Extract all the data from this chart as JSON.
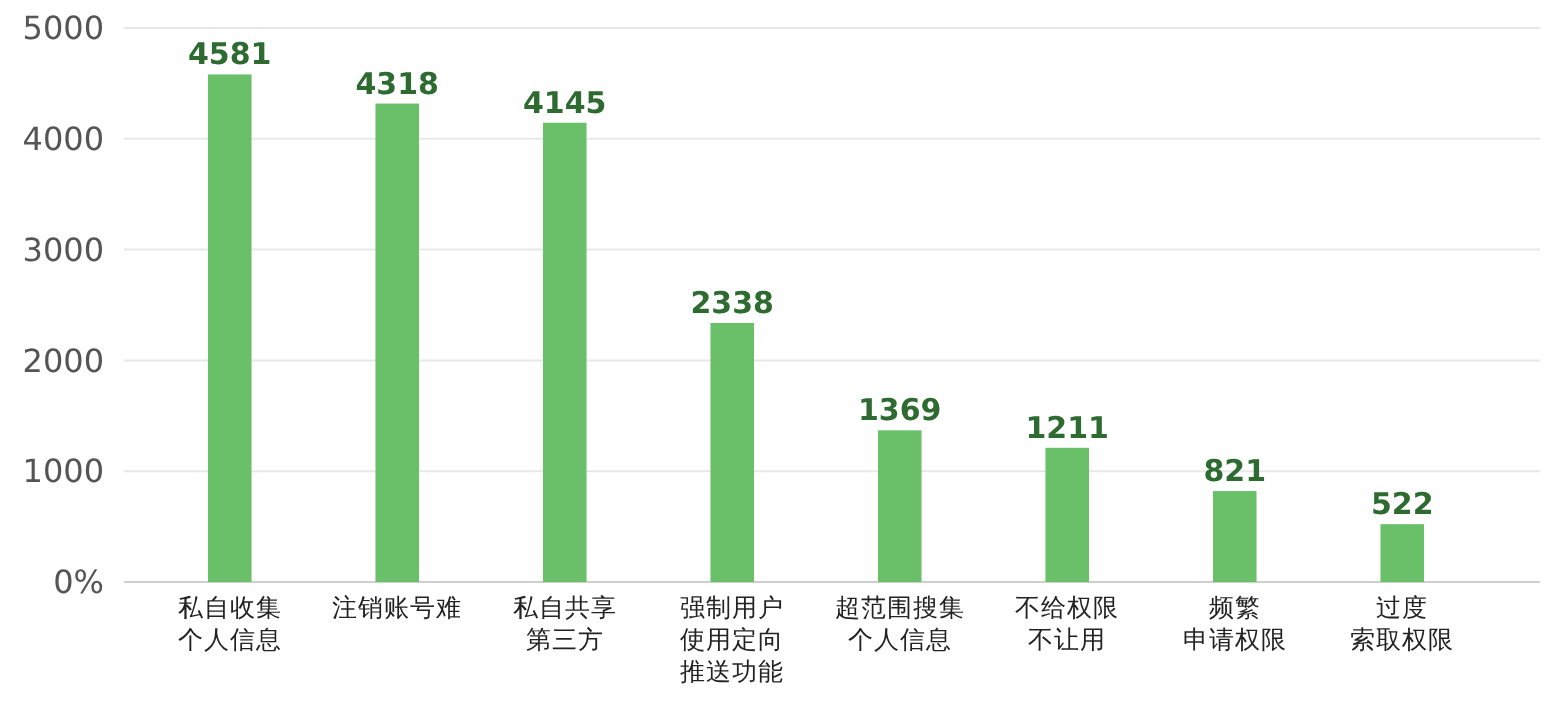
{
  "chart_data": {
    "type": "bar",
    "categories": [
      "私自收集个人信息",
      "注销账号难",
      "私自共享第三方",
      "强制用户使用定向推送功能",
      "超范围搜集个人信息",
      "不给权限不让用",
      "频繁申请权限",
      "过度索取权限"
    ],
    "values": [
      4581,
      4318,
      4145,
      2338,
      1369,
      1211,
      821,
      522
    ],
    "color": "#6abf69",
    "ylim": [
      0,
      5000
    ],
    "yticks": [
      {
        "value": 0,
        "label": "0%"
      },
      1000,
      2000,
      3000,
      4000,
      5000
    ],
    "grid": "y",
    "data_labels": true
  }
}
